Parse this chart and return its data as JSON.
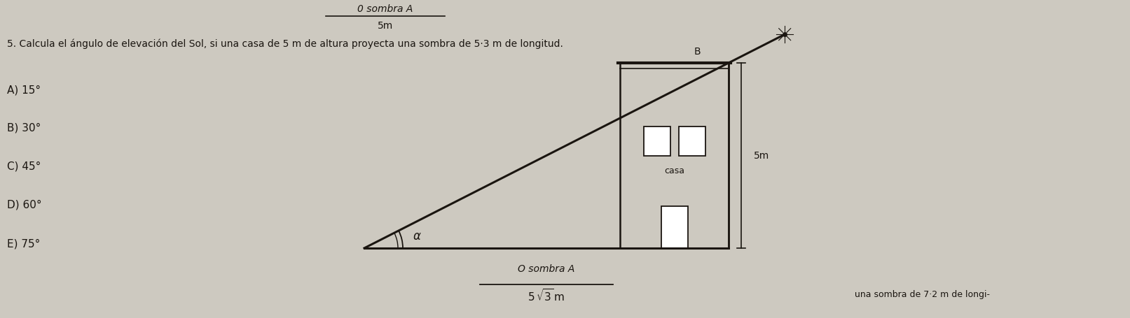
{
  "bg_color": "#cdc9c0",
  "title_top": "0 sombra A",
  "subtitle_top": "5m",
  "problem_text": "5. Calcula el ángulo de elevación del Sol, si una casa de 5 m de altura proyecta una sombra de 5·3 m de longitud.",
  "options": [
    "A) 15°",
    "B) 30°",
    "C) 45°",
    "D) 60°",
    "E) 75°"
  ],
  "bottom_label_top": "O sombra A",
  "line_color": "#1a1510",
  "text_color": "#1a1510",
  "diagram": {
    "alpha_label": "α",
    "B_label": "B",
    "casa_label": "casa",
    "height_label": "5m"
  },
  "trailing_text": "una sombra de 7·2 m de longi-"
}
